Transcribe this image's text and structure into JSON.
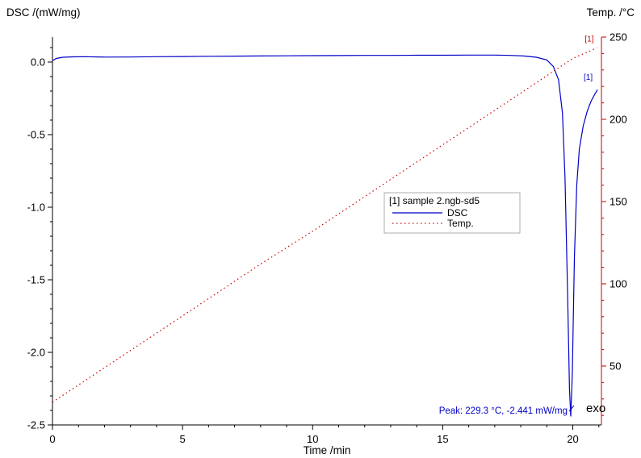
{
  "chart_data": {
    "type": "line",
    "title": "",
    "xlabel": "Time /min",
    "ylabel_left": "DSC /(mW/mg)",
    "ylabel_right": "Temp. /°C",
    "xlim": [
      0,
      21.1
    ],
    "ylim_left": [
      -2.5,
      0.172
    ],
    "ylim_right": [
      14.2,
      250
    ],
    "x_ticks": [
      0,
      5,
      10,
      15,
      20
    ],
    "y_ticks_left": [
      0.0,
      -0.5,
      -1.0,
      -1.5,
      -2.0,
      -2.5
    ],
    "y_ticks_right": [
      250,
      200,
      150,
      100,
      50
    ],
    "x_minor_step": 1,
    "y_left_minor_step": 0.1,
    "y_right_minor_step": 10,
    "grid": false,
    "series": [
      {
        "name": "DSC",
        "axis": "left",
        "color": "#0000c8",
        "style": "solid",
        "points": [
          [
            0,
            0.01
          ],
          [
            0.15,
            0.025
          ],
          [
            0.4,
            0.033
          ],
          [
            0.8,
            0.036
          ],
          [
            1.2,
            0.037
          ],
          [
            2,
            0.034
          ],
          [
            3,
            0.035
          ],
          [
            4,
            0.037
          ],
          [
            5,
            0.038
          ],
          [
            6,
            0.04
          ],
          [
            7,
            0.041
          ],
          [
            8,
            0.042
          ],
          [
            9,
            0.043
          ],
          [
            10,
            0.044
          ],
          [
            11,
            0.045
          ],
          [
            12,
            0.046
          ],
          [
            13,
            0.046
          ],
          [
            14,
            0.047
          ],
          [
            15,
            0.047
          ],
          [
            16,
            0.048
          ],
          [
            17,
            0.048
          ],
          [
            17.6,
            0.046
          ],
          [
            18.1,
            0.042
          ],
          [
            18.6,
            0.033
          ],
          [
            19,
            0.015
          ],
          [
            19.25,
            -0.03
          ],
          [
            19.45,
            -0.12
          ],
          [
            19.6,
            -0.35
          ],
          [
            19.7,
            -0.8
          ],
          [
            19.8,
            -1.6
          ],
          [
            19.87,
            -2.25
          ],
          [
            19.92,
            -2.441
          ],
          [
            19.98,
            -2.15
          ],
          [
            20.06,
            -1.35
          ],
          [
            20.15,
            -0.85
          ],
          [
            20.25,
            -0.6
          ],
          [
            20.4,
            -0.44
          ],
          [
            20.55,
            -0.34
          ],
          [
            20.7,
            -0.27
          ],
          [
            20.85,
            -0.22
          ],
          [
            20.95,
            -0.19
          ]
        ]
      },
      {
        "name": "Temp.",
        "axis": "right",
        "color": "#cc0000",
        "style": "dotted",
        "points": [
          [
            0,
            28
          ],
          [
            2,
            49
          ],
          [
            4,
            70
          ],
          [
            6,
            91
          ],
          [
            8,
            112
          ],
          [
            10,
            132
          ],
          [
            12,
            153
          ],
          [
            14,
            174
          ],
          [
            16,
            195
          ],
          [
            18,
            216
          ],
          [
            20,
            237
          ],
          [
            20.93,
            243.5
          ]
        ]
      }
    ],
    "legend": {
      "header": "[1] sample 2.ngb-sd5",
      "items": [
        {
          "label": "DSC",
          "color": "#0000c8",
          "style": "solid"
        },
        {
          "label": "Temp.",
          "color": "#cc0000",
          "style": "dotted"
        }
      ],
      "position": "center"
    },
    "peak": {
      "time_min": 19.92,
      "temperature_c": 229.3,
      "dsc_mw_mg": -2.441,
      "label": "Peak: 229.3 °C, -2.441 mW/mg"
    },
    "annotations": {
      "dsc_curve_marker": "[1]",
      "temp_curve_marker": "[1]",
      "exo_label": "exo"
    }
  }
}
